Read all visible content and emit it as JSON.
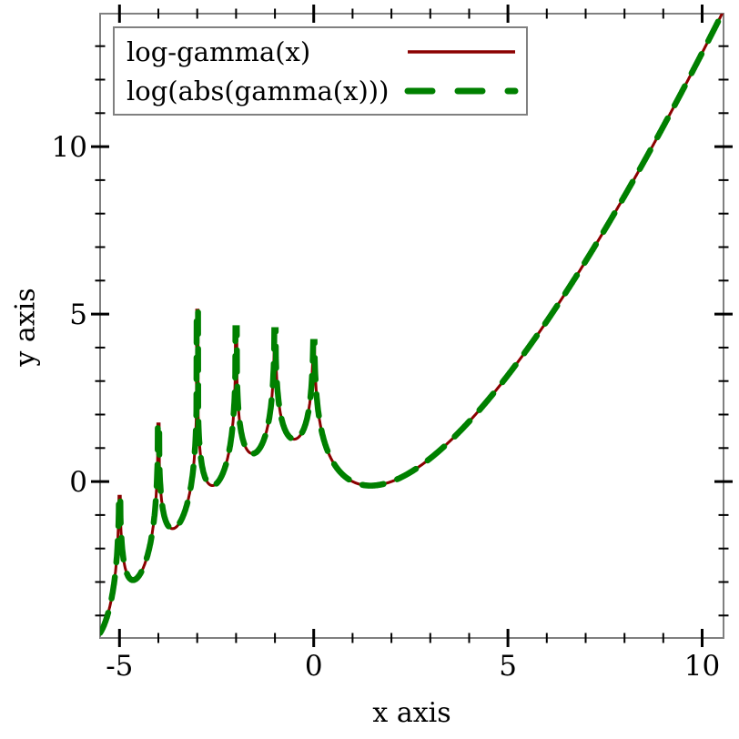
{
  "figure": {
    "background": "#ffffff"
  },
  "axes": {
    "xlabel": "x axis",
    "ylabel": "y axis",
    "xlim": [
      -5.5,
      10.55
    ],
    "ylim": [
      -4.67,
      13.97
    ],
    "x_ticks": [
      {
        "value": -5,
        "label": "-5"
      },
      {
        "value": 0,
        "label": "0"
      },
      {
        "value": 5,
        "label": "5"
      },
      {
        "value": 10,
        "label": "10"
      }
    ],
    "y_ticks": [
      {
        "value": 0,
        "label": "0"
      },
      {
        "value": 5,
        "label": "5"
      },
      {
        "value": 10,
        "label": "10"
      }
    ],
    "x_minor_step": 1,
    "y_minor_step": 1,
    "border_color": "#808080",
    "tick_color": "#000000",
    "label_color": "#000000"
  },
  "legend": {
    "position": "top-left",
    "border_color": "#808080",
    "background": "#ffffff",
    "entries": [
      {
        "label": "log-gamma(x)",
        "color": "#8b0000",
        "style": "solid"
      },
      {
        "label": "log(abs(gamma(x)))",
        "color": "#008000",
        "style": "dashed"
      }
    ]
  },
  "chart_data": {
    "type": "line",
    "title": "",
    "xlabel": "x axis",
    "ylabel": "y axis",
    "xlim": [
      -5.5,
      10.55
    ],
    "ylim": [
      -4.67,
      13.97
    ],
    "grid": false,
    "legend_position": "top-left",
    "series": [
      {
        "name": "log-gamma(x)",
        "function": "log_abs_gamma",
        "color": "#8b0000",
        "style": "solid",
        "width": 3
      },
      {
        "name": "log(abs(gamma(x)))",
        "function": "log_abs_gamma",
        "color": "#008000",
        "style": "dashed",
        "width": 6.5
      }
    ],
    "sample_step": 0.005,
    "poles": [
      0,
      -1,
      -2,
      -3,
      -4,
      -5
    ],
    "pole_peak_values": {
      "0": 4.17,
      "-1": 4.52,
      "-2": 4.58,
      "-3": 5.12,
      "-4": 1.72,
      "-5": -0.44
    },
    "key_points": [
      {
        "x": -5.5,
        "y": -4.52
      },
      {
        "x": -4.654,
        "y": -2.94
      },
      {
        "x": -3.635,
        "y": -1.41
      },
      {
        "x": -2.611,
        "y": -0.12
      },
      {
        "x": -1.573,
        "y": 0.83
      },
      {
        "x": -0.504,
        "y": 1.27
      },
      {
        "x": 0.5,
        "y": 0.57
      },
      {
        "x": 1,
        "y": 0
      },
      {
        "x": 1.4616,
        "y": -0.121
      },
      {
        "x": 2,
        "y": 0
      },
      {
        "x": 3,
        "y": 0.693
      },
      {
        "x": 4,
        "y": 1.792
      },
      {
        "x": 5,
        "y": 3.178
      },
      {
        "x": 6,
        "y": 4.787
      },
      {
        "x": 7,
        "y": 6.579
      },
      {
        "x": 8,
        "y": 8.525
      },
      {
        "x": 9,
        "y": 10.605
      },
      {
        "x": 10,
        "y": 12.802
      },
      {
        "x": 10.5,
        "y": 13.94
      }
    ],
    "curve_dash": "24 16",
    "legend_dash": "27 28"
  }
}
